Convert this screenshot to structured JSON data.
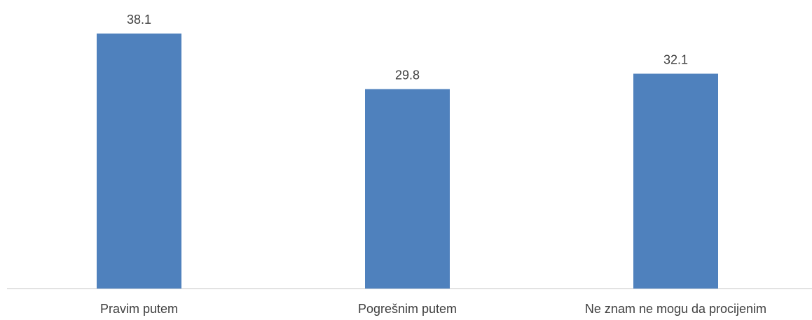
{
  "chart_data": {
    "type": "bar",
    "categories": [
      "Pravim putem",
      "Pogrešnim putem",
      "Ne znam ne mogu da procijenim"
    ],
    "values": [
      38.1,
      29.8,
      32.1
    ],
    "value_labels": [
      "38.1",
      "29.8",
      "32.1"
    ],
    "title": "",
    "xlabel": "",
    "ylabel": "",
    "ylim": [
      0,
      40
    ],
    "grid": false,
    "legend": "none",
    "bar_color": "#4f81bd",
    "axis_color": "#d9d9d9",
    "label_color": "#404040"
  }
}
